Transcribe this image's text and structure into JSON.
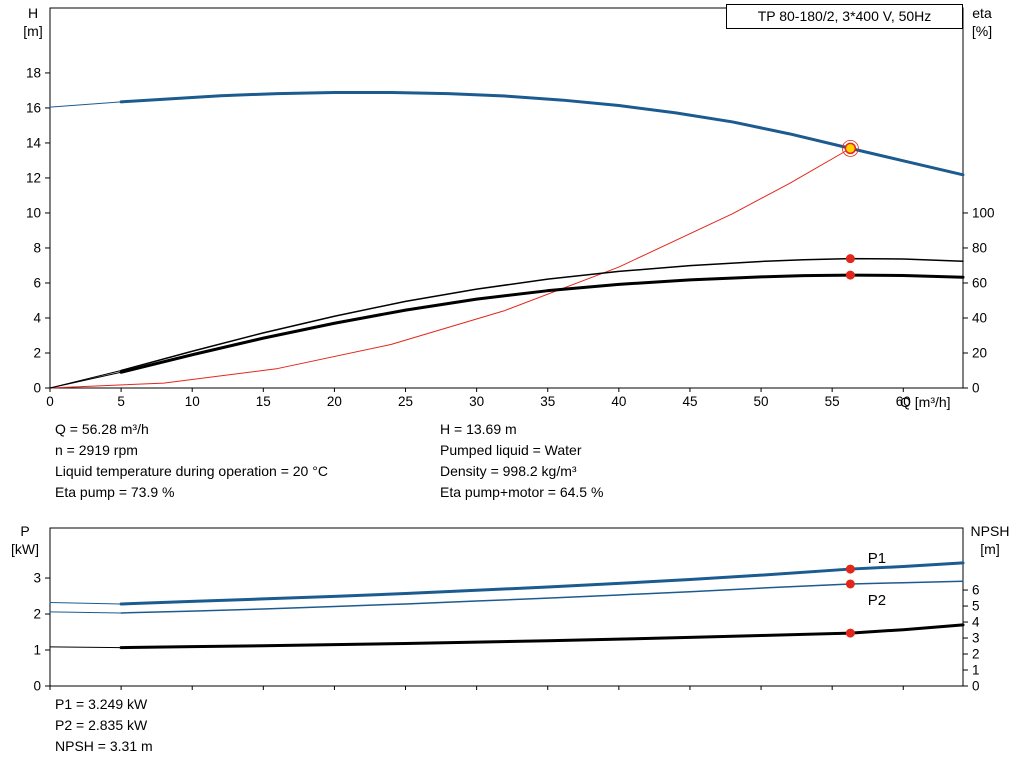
{
  "title_box": "TP 80-180/2, 3*400 V, 50Hz",
  "colors": {
    "blue": "#1c5b8f",
    "red": "#e3261c",
    "yellow": "#ffd400",
    "black": "#000000"
  },
  "info_top": {
    "left": [
      "Q = 56.28 m³/h",
      "n = 2919 rpm",
      "Liquid temperature during operation = 20 °C",
      "Eta pump = 73.9 %"
    ],
    "right": [
      "H = 13.69 m",
      "Pumped liquid = Water",
      "Density = 998.2 kg/m³",
      "Eta pump+motor = 64.5 %"
    ]
  },
  "info_bottom": [
    "P1 = 3.249 kW",
    "P2 = 2.835 kW",
    "NPSH = 3.31 m"
  ],
  "chart_data": [
    {
      "id": "qh",
      "type": "line",
      "title": "TP 80-180/2, 3*400 V, 50Hz",
      "x_axis": {
        "label": "Q [m³/h]",
        "min": 0,
        "max": 64.2,
        "show_labels": true,
        "ticks": [
          0,
          5,
          10,
          15,
          20,
          25,
          30,
          35,
          40,
          45,
          50,
          55,
          60
        ]
      },
      "y_left": {
        "label": "H [m]",
        "label_lines": [
          "H",
          "[m]"
        ],
        "min": 0,
        "max": 21.71,
        "ticks": [
          0,
          2,
          4,
          6,
          8,
          10,
          12,
          14,
          16,
          18
        ]
      },
      "y_right": {
        "label": "eta [%]",
        "label_lines": [
          "eta",
          "[%]"
        ],
        "min": 0,
        "max": 217.1,
        "ticks": [
          0,
          20,
          40,
          60,
          80,
          100
        ]
      },
      "series": [
        {
          "name": "pump-curve-lead",
          "axis": "left",
          "color": "blue",
          "width": 1,
          "points": [
            [
              0,
              16.05
            ],
            [
              5,
              16.35
            ]
          ]
        },
        {
          "name": "pump-curve",
          "axis": "left",
          "color": "blue",
          "width": 3,
          "points": [
            [
              5,
              16.35
            ],
            [
              8,
              16.5
            ],
            [
              12,
              16.7
            ],
            [
              16,
              16.82
            ],
            [
              20,
              16.88
            ],
            [
              24,
              16.88
            ],
            [
              28,
              16.82
            ],
            [
              32,
              16.68
            ],
            [
              36,
              16.45
            ],
            [
              40,
              16.14
            ],
            [
              44,
              15.72
            ],
            [
              48,
              15.2
            ],
            [
              52,
              14.52
            ],
            [
              56.28,
              13.69
            ],
            [
              60,
              12.98
            ],
            [
              64.2,
              12.18
            ]
          ]
        },
        {
          "name": "system-curve",
          "axis": "left",
          "color": "red",
          "width": 1,
          "points": [
            [
              0,
              0
            ],
            [
              8,
              0.28
            ],
            [
              16,
              1.11
            ],
            [
              24,
              2.49
            ],
            [
              32,
              4.43
            ],
            [
              40,
              6.91
            ],
            [
              48,
              9.96
            ],
            [
              52,
              11.69
            ],
            [
              56.28,
              13.69
            ]
          ]
        },
        {
          "name": "eta-pump-curve-lead",
          "axis": "right",
          "color": "black",
          "width": 1,
          "points": [
            [
              0,
              0
            ],
            [
              5,
              10
            ]
          ]
        },
        {
          "name": "eta-pump-curve",
          "axis": "right",
          "color": "black",
          "width": 1.5,
          "points": [
            [
              5,
              10
            ],
            [
              10,
              21
            ],
            [
              15,
              31.5
            ],
            [
              20,
              41
            ],
            [
              25,
              49.5
            ],
            [
              30,
              56.5
            ],
            [
              35,
              62.2
            ],
            [
              40,
              66.6
            ],
            [
              45,
              69.9
            ],
            [
              50,
              72.3
            ],
            [
              53,
              73.3
            ],
            [
              56.28,
              73.9
            ],
            [
              60,
              73.7
            ],
            [
              64.2,
              72.4
            ]
          ]
        },
        {
          "name": "eta-pump-motor-curve-lead",
          "axis": "right",
          "color": "black",
          "width": 1,
          "points": [
            [
              0,
              0
            ],
            [
              5,
              9
            ]
          ]
        },
        {
          "name": "eta-pump-motor-curve",
          "axis": "right",
          "color": "black",
          "width": 3,
          "points": [
            [
              5,
              9
            ],
            [
              10,
              19
            ],
            [
              15,
              28.5
            ],
            [
              20,
              37
            ],
            [
              25,
              44.5
            ],
            [
              30,
              50.8
            ],
            [
              35,
              55.6
            ],
            [
              40,
              59.2
            ],
            [
              45,
              61.8
            ],
            [
              50,
              63.5
            ],
            [
              53,
              64.2
            ],
            [
              56.28,
              64.5
            ],
            [
              60,
              64.3
            ],
            [
              64.2,
              63.3
            ]
          ]
        }
      ],
      "markers": [
        {
          "name": "duty-point",
          "axis": "left",
          "x": 56.28,
          "y": 13.69,
          "style": "duty"
        },
        {
          "name": "eta-pump-duty-point",
          "axis": "right",
          "x": 56.28,
          "y": 73.9,
          "style": "dot"
        },
        {
          "name": "eta-pump-motor-duty-point",
          "axis": "right",
          "x": 56.28,
          "y": 64.5,
          "style": "dot"
        }
      ],
      "annotations": []
    },
    {
      "id": "power-npsh",
      "type": "line",
      "x_axis": {
        "label": "",
        "min": 0,
        "max": 64.2,
        "show_labels": false,
        "ticks": [
          0,
          5,
          10,
          15,
          20,
          25,
          30,
          35,
          40,
          45,
          50,
          55,
          60
        ]
      },
      "y_left": {
        "label": "P [kW]",
        "label_lines": [
          "P",
          "[kW]"
        ],
        "min": 0,
        "max": 4.39,
        "ticks": [
          0,
          1,
          2,
          3
        ]
      },
      "y_right": {
        "label": "NPSH [m]",
        "label_lines": [
          "NPSH",
          "[m]"
        ],
        "min": 0,
        "max": 9.88,
        "ticks": [
          0,
          1,
          2,
          3,
          4,
          5,
          6
        ]
      },
      "series": [
        {
          "name": "p1-curve-lead",
          "axis": "left",
          "color": "blue",
          "width": 1,
          "points": [
            [
              0,
              2.32
            ],
            [
              5,
              2.28
            ]
          ]
        },
        {
          "name": "p1-curve",
          "axis": "left",
          "color": "blue",
          "width": 3,
          "points": [
            [
              5,
              2.28
            ],
            [
              10,
              2.35
            ],
            [
              15,
              2.42
            ],
            [
              20,
              2.49
            ],
            [
              25,
              2.57
            ],
            [
              30,
              2.66
            ],
            [
              35,
              2.75
            ],
            [
              40,
              2.85
            ],
            [
              45,
              2.96
            ],
            [
              50,
              3.08
            ],
            [
              56.28,
              3.249
            ],
            [
              60,
              3.32
            ],
            [
              64.2,
              3.42
            ]
          ]
        },
        {
          "name": "p2-curve-lead",
          "axis": "left",
          "color": "blue",
          "width": 1,
          "points": [
            [
              0,
              2.06
            ],
            [
              5,
              2.03
            ]
          ]
        },
        {
          "name": "p2-curve",
          "axis": "left",
          "color": "blue",
          "width": 1.5,
          "points": [
            [
              5,
              2.03
            ],
            [
              10,
              2.08
            ],
            [
              15,
              2.14
            ],
            [
              20,
              2.21
            ],
            [
              25,
              2.28
            ],
            [
              30,
              2.36
            ],
            [
              35,
              2.44
            ],
            [
              40,
              2.53
            ],
            [
              45,
              2.62
            ],
            [
              50,
              2.72
            ],
            [
              56.28,
              2.835
            ],
            [
              60,
              2.87
            ],
            [
              64.2,
              2.91
            ]
          ]
        },
        {
          "name": "npsh-curve-lead",
          "axis": "right",
          "color": "black",
          "width": 1,
          "points": [
            [
              0,
              2.45
            ],
            [
              5,
              2.4
            ]
          ]
        },
        {
          "name": "npsh-curve",
          "axis": "right",
          "color": "black",
          "width": 3,
          "points": [
            [
              5,
              2.4
            ],
            [
              10,
              2.46
            ],
            [
              15,
              2.52
            ],
            [
              20,
              2.59
            ],
            [
              25,
              2.66
            ],
            [
              30,
              2.74
            ],
            [
              35,
              2.83
            ],
            [
              40,
              2.93
            ],
            [
              45,
              3.04
            ],
            [
              50,
              3.16
            ],
            [
              56.28,
              3.31
            ],
            [
              60,
              3.52
            ],
            [
              64.2,
              3.82
            ]
          ]
        }
      ],
      "markers": [
        {
          "name": "p1-duty-point",
          "axis": "left",
          "x": 56.28,
          "y": 3.249,
          "style": "dot"
        },
        {
          "name": "p2-duty-point",
          "axis": "left",
          "x": 56.28,
          "y": 2.835,
          "style": "dot"
        },
        {
          "name": "npsh-duty-point",
          "axis": "right",
          "x": 56.28,
          "y": 3.31,
          "style": "dot"
        }
      ],
      "annotations": [
        {
          "text": "P1",
          "axis": "left",
          "x": 57.5,
          "y": 3.42
        },
        {
          "text": "P2",
          "axis": "left",
          "x": 57.5,
          "y": 2.25
        }
      ]
    }
  ]
}
